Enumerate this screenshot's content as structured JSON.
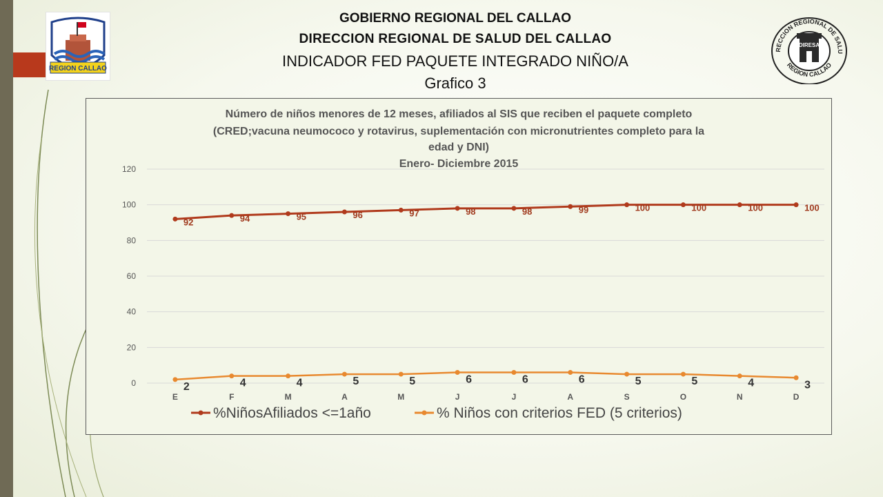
{
  "header": {
    "line1": "GOBIERNO REGIONAL DEL CALLAO",
    "line2": "DIRECCION  REGIONAL DE SALUD  DEL CALLAO",
    "line3": "INDICADOR FED PAQUETE INTEGRADO NIÑO/A",
    "line4": "Grafico 3"
  },
  "logos": {
    "left_text": "REGION CALLAO",
    "right_top_text": "DIRECCION REGIONAL DE SALUD",
    "right_bottom_text": "REGION CALLAO",
    "right_badge": "DIRESA"
  },
  "colors": {
    "series1": "#b03a1c",
    "series2": "#e8892f",
    "accent": "#b8391c",
    "sidebar": "#6f6a55"
  },
  "chart_data": {
    "type": "line",
    "title": [
      "Número de niños menores de 12 meses, afiliados al SIS que reciben el paquete completo",
      "(CRED;vacuna neumococo y rotavirus, suplementación con micronutrientes completo para la",
      "edad y DNI)",
      "Enero- Diciembre 2015"
    ],
    "categories": [
      "E",
      "F",
      "M",
      "A",
      "M",
      "J",
      "J",
      "A",
      "S",
      "O",
      "N",
      "D"
    ],
    "series": [
      {
        "name": "%NiñosAfiliados <=1año",
        "values": [
          92,
          94,
          95,
          96,
          97,
          98,
          98,
          99,
          100,
          100,
          100,
          100
        ]
      },
      {
        "name": "% Niños con criterios FED (5 criterios)",
        "values": [
          2,
          4,
          4,
          5,
          5,
          6,
          6,
          6,
          5,
          5,
          4,
          3
        ]
      }
    ],
    "ylim": [
      0,
      120
    ],
    "yticks": [
      0,
      20,
      40,
      60,
      80,
      100,
      120
    ],
    "grid": true,
    "legend_position": "bottom"
  }
}
